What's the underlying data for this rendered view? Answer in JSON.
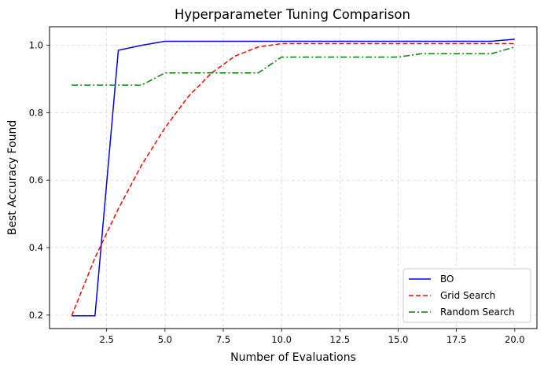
{
  "chart_data": {
    "type": "line",
    "title": "Hyperparameter Tuning Comparison",
    "xlabel": "Number of Evaluations",
    "ylabel": "Best Accuracy Found",
    "xlim": [
      0.05,
      20.95
    ],
    "ylim": [
      0.16,
      1.055
    ],
    "xticks": [
      2.5,
      5.0,
      7.5,
      10.0,
      12.5,
      15.0,
      17.5,
      20.0
    ],
    "xtick_labels": [
      "2.5",
      "5.0",
      "7.5",
      "10.0",
      "12.5",
      "15.0",
      "17.5",
      "20.0"
    ],
    "yticks": [
      0.2,
      0.4,
      0.6,
      0.8,
      1.0
    ],
    "ytick_labels": [
      "0.2",
      "0.4",
      "0.6",
      "0.8",
      "1.0"
    ],
    "grid": true,
    "legend_position": "lower-right",
    "x": [
      1,
      2,
      3,
      4,
      5,
      6,
      7,
      8,
      9,
      10,
      11,
      12,
      13,
      14,
      15,
      16,
      17,
      18,
      19,
      20
    ],
    "series": [
      {
        "name": "BO",
        "color": "#0000ff",
        "style": "solid",
        "values": [
          0.198,
          0.198,
          0.985,
          1.0,
          1.012,
          1.012,
          1.012,
          1.012,
          1.012,
          1.012,
          1.012,
          1.012,
          1.012,
          1.012,
          1.012,
          1.012,
          1.012,
          1.012,
          1.012,
          1.018
        ]
      },
      {
        "name": "Grid Search",
        "color": "#ff0000",
        "style": "dashed",
        "values": [
          0.198,
          0.37,
          0.515,
          0.645,
          0.755,
          0.848,
          0.918,
          0.968,
          0.995,
          1.005,
          1.005,
          1.005,
          1.005,
          1.005,
          1.005,
          1.005,
          1.005,
          1.005,
          1.005,
          1.005
        ]
      },
      {
        "name": "Random Search",
        "color": "#008000",
        "style": "dashdot",
        "values": [
          0.882,
          0.882,
          0.882,
          0.882,
          0.918,
          0.918,
          0.918,
          0.918,
          0.918,
          0.965,
          0.965,
          0.965,
          0.965,
          0.965,
          0.965,
          0.975,
          0.975,
          0.975,
          0.975,
          0.995
        ]
      }
    ]
  }
}
